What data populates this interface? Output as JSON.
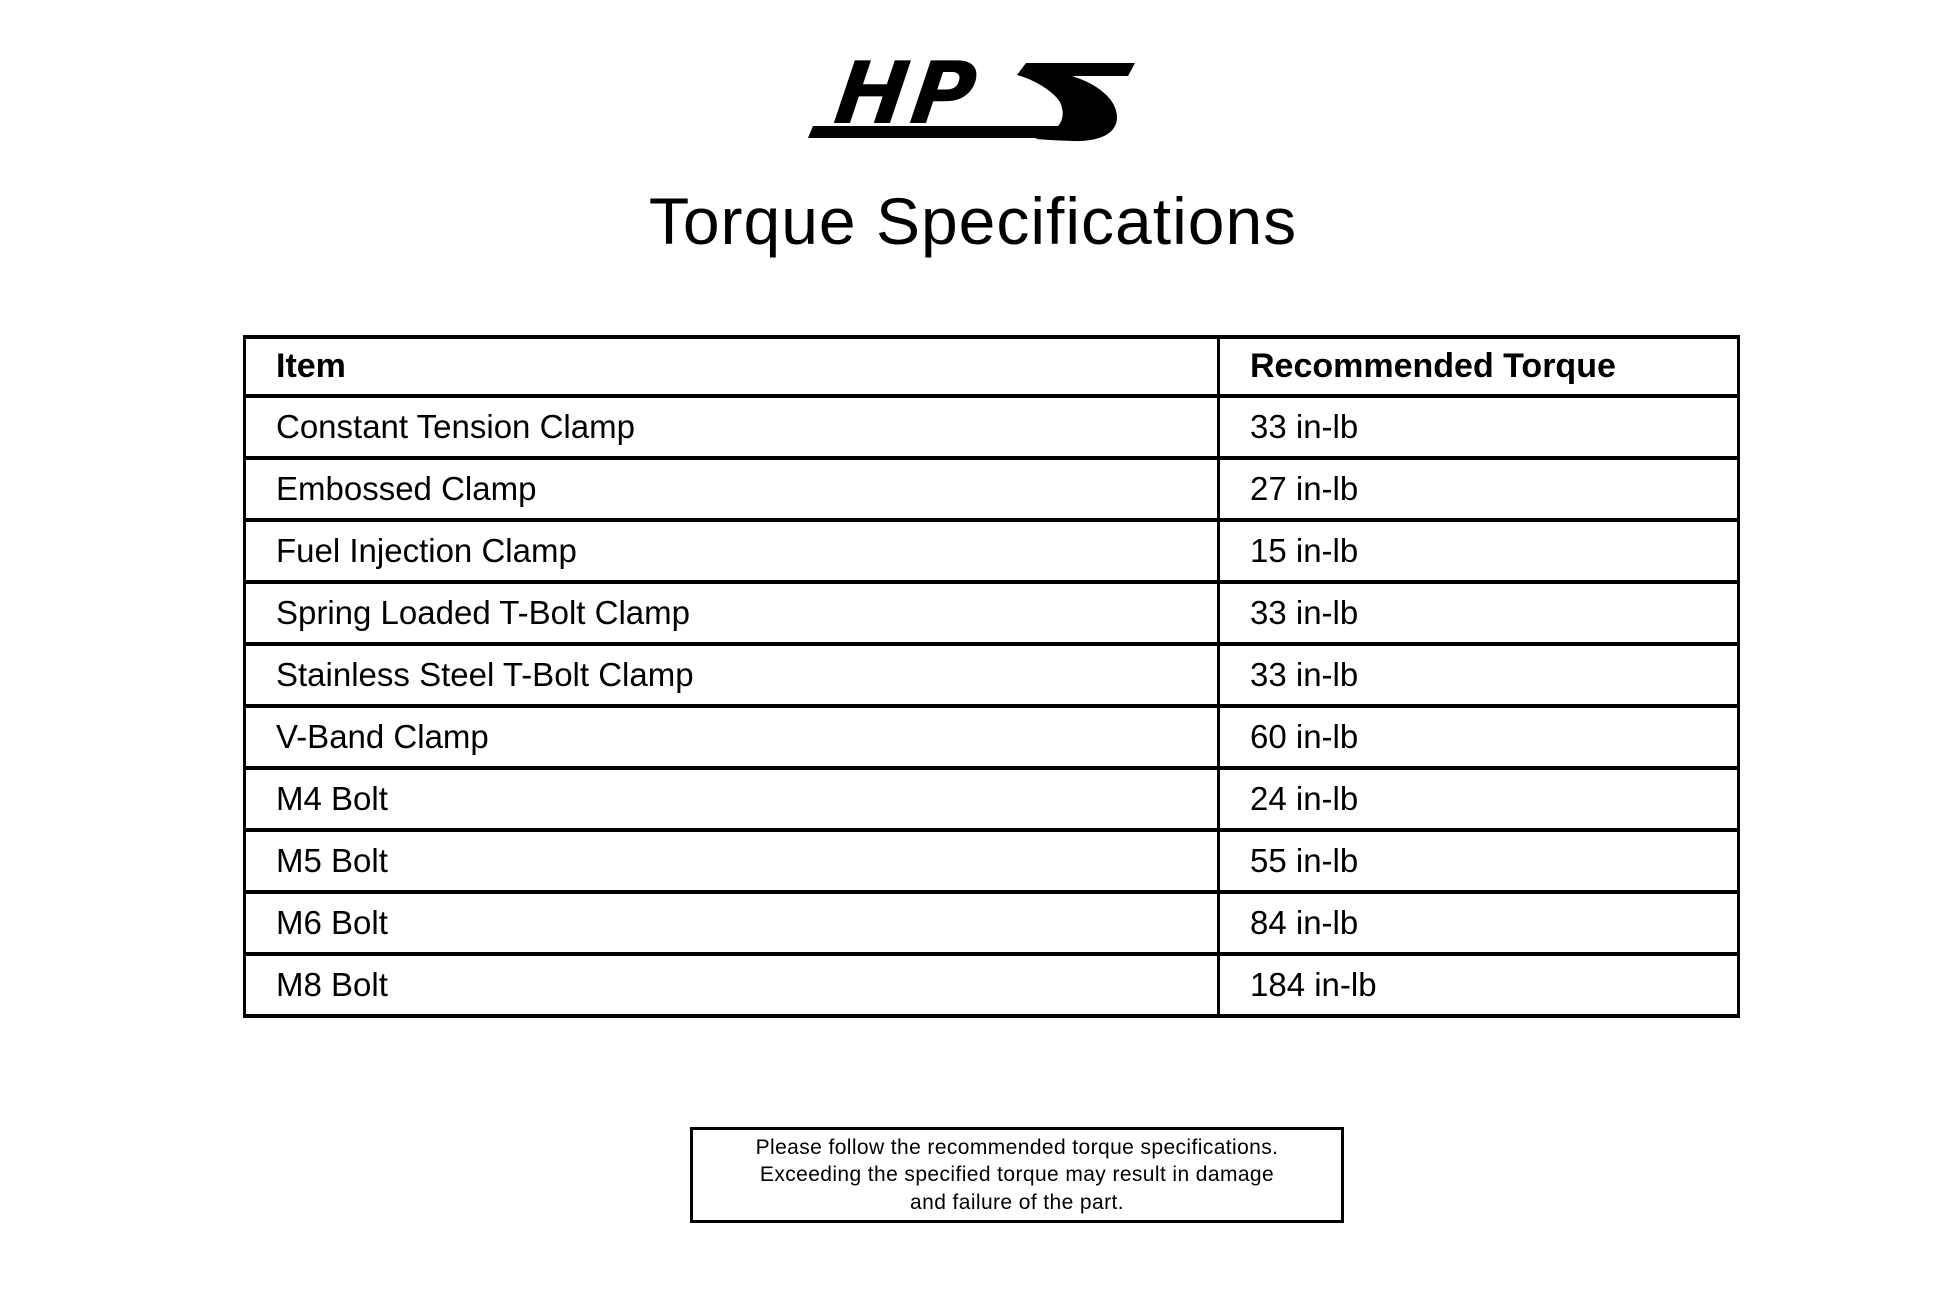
{
  "page": {
    "background_color": "#ffffff",
    "text_color": "#000000"
  },
  "logo": {
    "name": "HPS",
    "hp": "HP"
  },
  "title": "Torque Specifications",
  "table": {
    "headers": {
      "item": "Item",
      "torque": "Recommended Torque"
    },
    "rows": [
      {
        "item": "Constant Tension Clamp",
        "torque": "33 in-lb"
      },
      {
        "item": "Embossed Clamp",
        "torque": "27 in-lb"
      },
      {
        "item": "Fuel Injection Clamp",
        "torque": "15 in-lb"
      },
      {
        "item": "Spring Loaded T-Bolt Clamp",
        "torque": "33 in-lb"
      },
      {
        "item": "Stainless Steel T-Bolt Clamp",
        "torque": "33 in-lb"
      },
      {
        "item": "V-Band Clamp",
        "torque": "60 in-lb"
      },
      {
        "item": "M4 Bolt",
        "torque": "24 in-lb"
      },
      {
        "item": "M5 Bolt",
        "torque": "55 in-lb"
      },
      {
        "item": "M6 Bolt",
        "torque": "84 in-lb"
      },
      {
        "item": "M8 Bolt",
        "torque": "184 in-lb"
      }
    ]
  },
  "note": {
    "lines": [
      "Please follow the recommended torque specifications.",
      "Exceeding the specified torque may result in damage",
      "and failure of the part."
    ]
  }
}
